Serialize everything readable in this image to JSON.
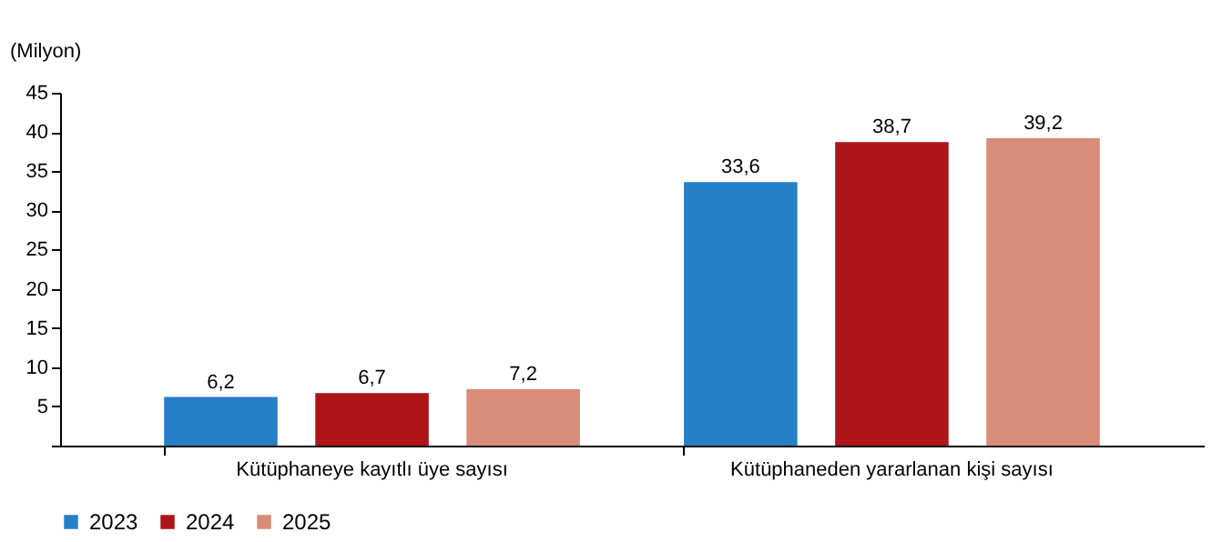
{
  "chart_data": {
    "type": "bar",
    "ylabel": "(Milyon)",
    "categories": [
      "Kütüphaneye kayıtlı üye sayısı",
      "Kütüphaneden yararlanan kişi sayısı"
    ],
    "series": [
      {
        "name": "2023",
        "color": "#2680c8",
        "values": [
          6.2,
          33.6
        ],
        "value_labels": [
          "6,2",
          "33,6"
        ]
      },
      {
        "name": "2024",
        "color": "#ad1519",
        "values": [
          6.7,
          38.7
        ],
        "value_labels": [
          "6,7",
          "38,7"
        ]
      },
      {
        "name": "2025",
        "color": "#d98c77",
        "values": [
          7.2,
          39.2
        ],
        "value_labels": [
          "7,2",
          "39,2"
        ]
      }
    ],
    "ylim": [
      0,
      45
    ],
    "yticks": [
      {
        "value": 0,
        "label": null
      },
      5,
      10,
      15,
      20,
      25,
      30,
      35,
      40,
      45
    ],
    "grid": false,
    "legend": "bottom"
  }
}
